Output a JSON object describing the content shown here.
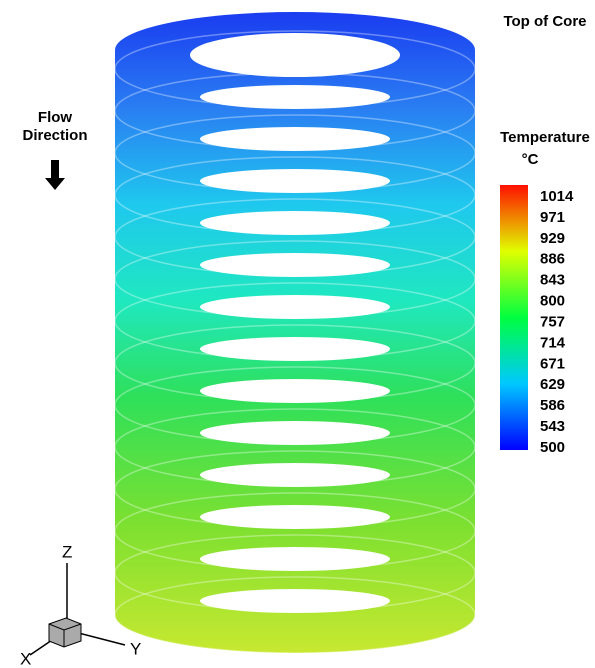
{
  "labels": {
    "top": "Top of Core",
    "flow": [
      "Flow",
      "Direction"
    ]
  },
  "colorbar": {
    "title": "Temperature",
    "unit": "°C",
    "ticks": [
      1014,
      971,
      929,
      886,
      843,
      800,
      757,
      714,
      671,
      629,
      586,
      543,
      500
    ]
  },
  "axes": {
    "z": "Z",
    "x": "X",
    "y": "Y"
  }
}
